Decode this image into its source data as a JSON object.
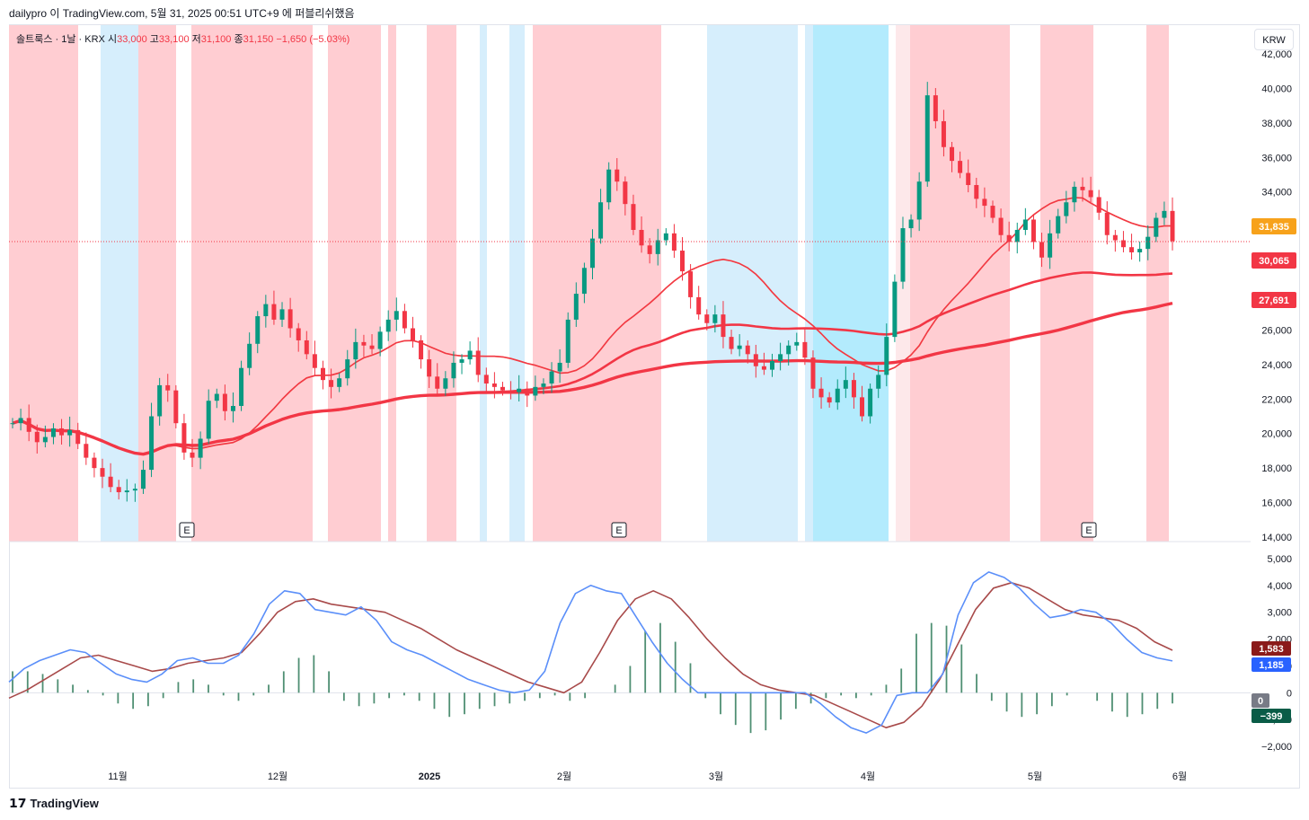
{
  "header": {
    "caption": "dailypro 이 TradingView.com, 5월 31, 2025 00:51 UTC+9 에 퍼블리쉬했음"
  },
  "legend": {
    "symbol": "솔트룩스 · 1날 · KRX",
    "open_label": "시",
    "open": "33,000",
    "high_label": "고",
    "high": "33,100",
    "low_label": "저",
    "low": "31,100",
    "close_label": "종",
    "close": "31,150",
    "change": "−1,650 (−5.03%)"
  },
  "currency_button": "KRW",
  "footer": {
    "brand": "TradingView",
    "logo_icon": "tv-logo-icon"
  },
  "colors": {
    "up": "#089981",
    "down": "#f23645",
    "band_red": "#ffcdd2",
    "band_blue": "#d6eefc",
    "band_cyan": "#b3ebfd",
    "ma_fast": "#f23645",
    "ma_orange": "#f6c67a",
    "ma_purple": "#9c7bea",
    "macd": "#5b8ff9",
    "signal": "#a84a4a",
    "hist": "#4f8f73"
  },
  "chart_data": [
    {
      "type": "candlestick",
      "ylim": [
        14000,
        42000
      ],
      "yticks": [
        "42,000",
        "40,000",
        "38,000",
        "36,000",
        "34,000",
        "32,000",
        "30,000",
        "28,000",
        "26,000",
        "24,000",
        "22,000",
        "20,000",
        "18,000",
        "16,000",
        "14,000"
      ],
      "xticks": [
        "11월",
        "12월",
        "2025",
        "2월",
        "3월",
        "4월",
        "5월",
        "6월"
      ],
      "earnings_markers": [
        "E",
        "E",
        "E"
      ],
      "last_price_labels": [
        {
          "value": "31,835",
          "color": "#f7a21b"
        },
        {
          "value": "30,065",
          "color": "#f23645"
        },
        {
          "value": "27,691",
          "color": "#f23645"
        }
      ],
      "close_series_approx": [
        20600,
        20900,
        20100,
        19500,
        19800,
        20300,
        19900,
        20200,
        19400,
        18600,
        18000,
        17500,
        16900,
        16600,
        16700,
        16800,
        17900,
        21000,
        22800,
        22500,
        20600,
        18900,
        18600,
        19700,
        21900,
        22300,
        21300,
        21600,
        23800,
        25200,
        26800,
        27500,
        26600,
        27200,
        26100,
        25400,
        24600,
        23800,
        23100,
        22700,
        23200,
        24300,
        25300,
        25100,
        24900,
        25900,
        26600,
        27100,
        26100,
        25400,
        24300,
        23300,
        22600,
        23200,
        24100,
        24300,
        24800,
        23400,
        22900,
        22700,
        22500,
        22400,
        22600,
        22200,
        22700,
        22900,
        23600,
        24100,
        26600,
        28100,
        29600,
        31300,
        33400,
        35300,
        34600,
        33300,
        31800,
        30900,
        30400,
        31200,
        31600,
        30600,
        29400,
        27900,
        26900,
        26400,
        26900,
        25600,
        24900,
        25100,
        24600,
        23900,
        23700,
        24200,
        24600,
        25100,
        25300,
        24400,
        22600,
        22100,
        21800,
        22600,
        23100,
        22100,
        21000,
        22600,
        23400,
        25600,
        28800,
        31900,
        32400,
        34600,
        39600,
        38100,
        36600,
        35800,
        35100,
        34400,
        33600,
        33200,
        32500,
        31500,
        31100,
        31800,
        32400,
        31100,
        30200,
        31600,
        32600,
        33400,
        34300,
        34100,
        33700,
        32800,
        31500,
        31200,
        30800,
        30500,
        30700,
        31400,
        32500,
        32900,
        31150
      ]
    },
    {
      "type": "macd",
      "ylim": [
        -2500,
        5300
      ],
      "yticks": [
        "5,000",
        "4,000",
        "3,000",
        "2,000",
        "1,000",
        "0",
        "−1,000",
        "−2,000"
      ],
      "last_value_labels": [
        {
          "value": "1,583",
          "color": "#8b1a1a"
        },
        {
          "value": "1,185",
          "color": "#2962ff"
        },
        {
          "value": "0",
          "color": "#787b86"
        },
        {
          "value": "−399",
          "color": "#0a5c47"
        }
      ],
      "macd_approx": [
        400,
        900,
        1200,
        1400,
        1600,
        1500,
        1100,
        700,
        500,
        400,
        700,
        1200,
        1300,
        1100,
        1100,
        1400,
        2200,
        3300,
        3800,
        3700,
        3100,
        3000,
        2900,
        3200,
        2700,
        1900,
        1600,
        1400,
        1100,
        800,
        500,
        300,
        100,
        0,
        100,
        800,
        2600,
        3700,
        4000,
        3800,
        3700,
        2800,
        1900,
        1100,
        500,
        0,
        0,
        0,
        0,
        0,
        0,
        0,
        0,
        -400,
        -900,
        -1300,
        -1500,
        -1200,
        -100,
        0,
        0,
        700,
        2900,
        4100,
        4500,
        4300,
        3900,
        3300,
        2800,
        2900,
        3100,
        3000,
        2600,
        2000,
        1500,
        1300,
        1185
      ],
      "signal_approx": [
        -200,
        100,
        500,
        900,
        1300,
        1400,
        1200,
        1000,
        800,
        900,
        1100,
        1200,
        1300,
        1500,
        2200,
        3000,
        3400,
        3500,
        3300,
        3200,
        3100,
        3000,
        2700,
        2400,
        2000,
        1600,
        1300,
        1000,
        700,
        400,
        200,
        0,
        400,
        1500,
        2700,
        3500,
        3800,
        3500,
        2800,
        2000,
        1300,
        700,
        300,
        100,
        0,
        -100,
        -400,
        -700,
        -1000,
        -1300,
        -1100,
        -500,
        500,
        1800,
        3100,
        3900,
        4100,
        3900,
        3500,
        3100,
        2900,
        2800,
        2700,
        2400,
        1900,
        1583
      ],
      "histogram_approx": [
        800,
        800,
        700,
        500,
        300,
        100,
        -100,
        -400,
        -600,
        -500,
        -200,
        400,
        500,
        300,
        -100,
        -300,
        -100,
        300,
        800,
        1300,
        1400,
        800,
        -300,
        -500,
        -400,
        -200,
        -100,
        -300,
        -600,
        -900,
        -800,
        -600,
        -500,
        -400,
        -300,
        -200,
        -100,
        -300,
        -200,
        0,
        300,
        1000,
        2300,
        2600,
        1900,
        1100,
        -200,
        -800,
        -1200,
        -1500,
        -1400,
        -1000,
        -600,
        -400,
        -200,
        -100,
        -200,
        -100,
        300,
        900,
        2200,
        2600,
        2500,
        1800,
        700,
        -300,
        -700,
        -900,
        -800,
        -500,
        -100,
        0,
        -300,
        -700,
        -900,
        -800,
        -600,
        -399
      ]
    }
  ]
}
